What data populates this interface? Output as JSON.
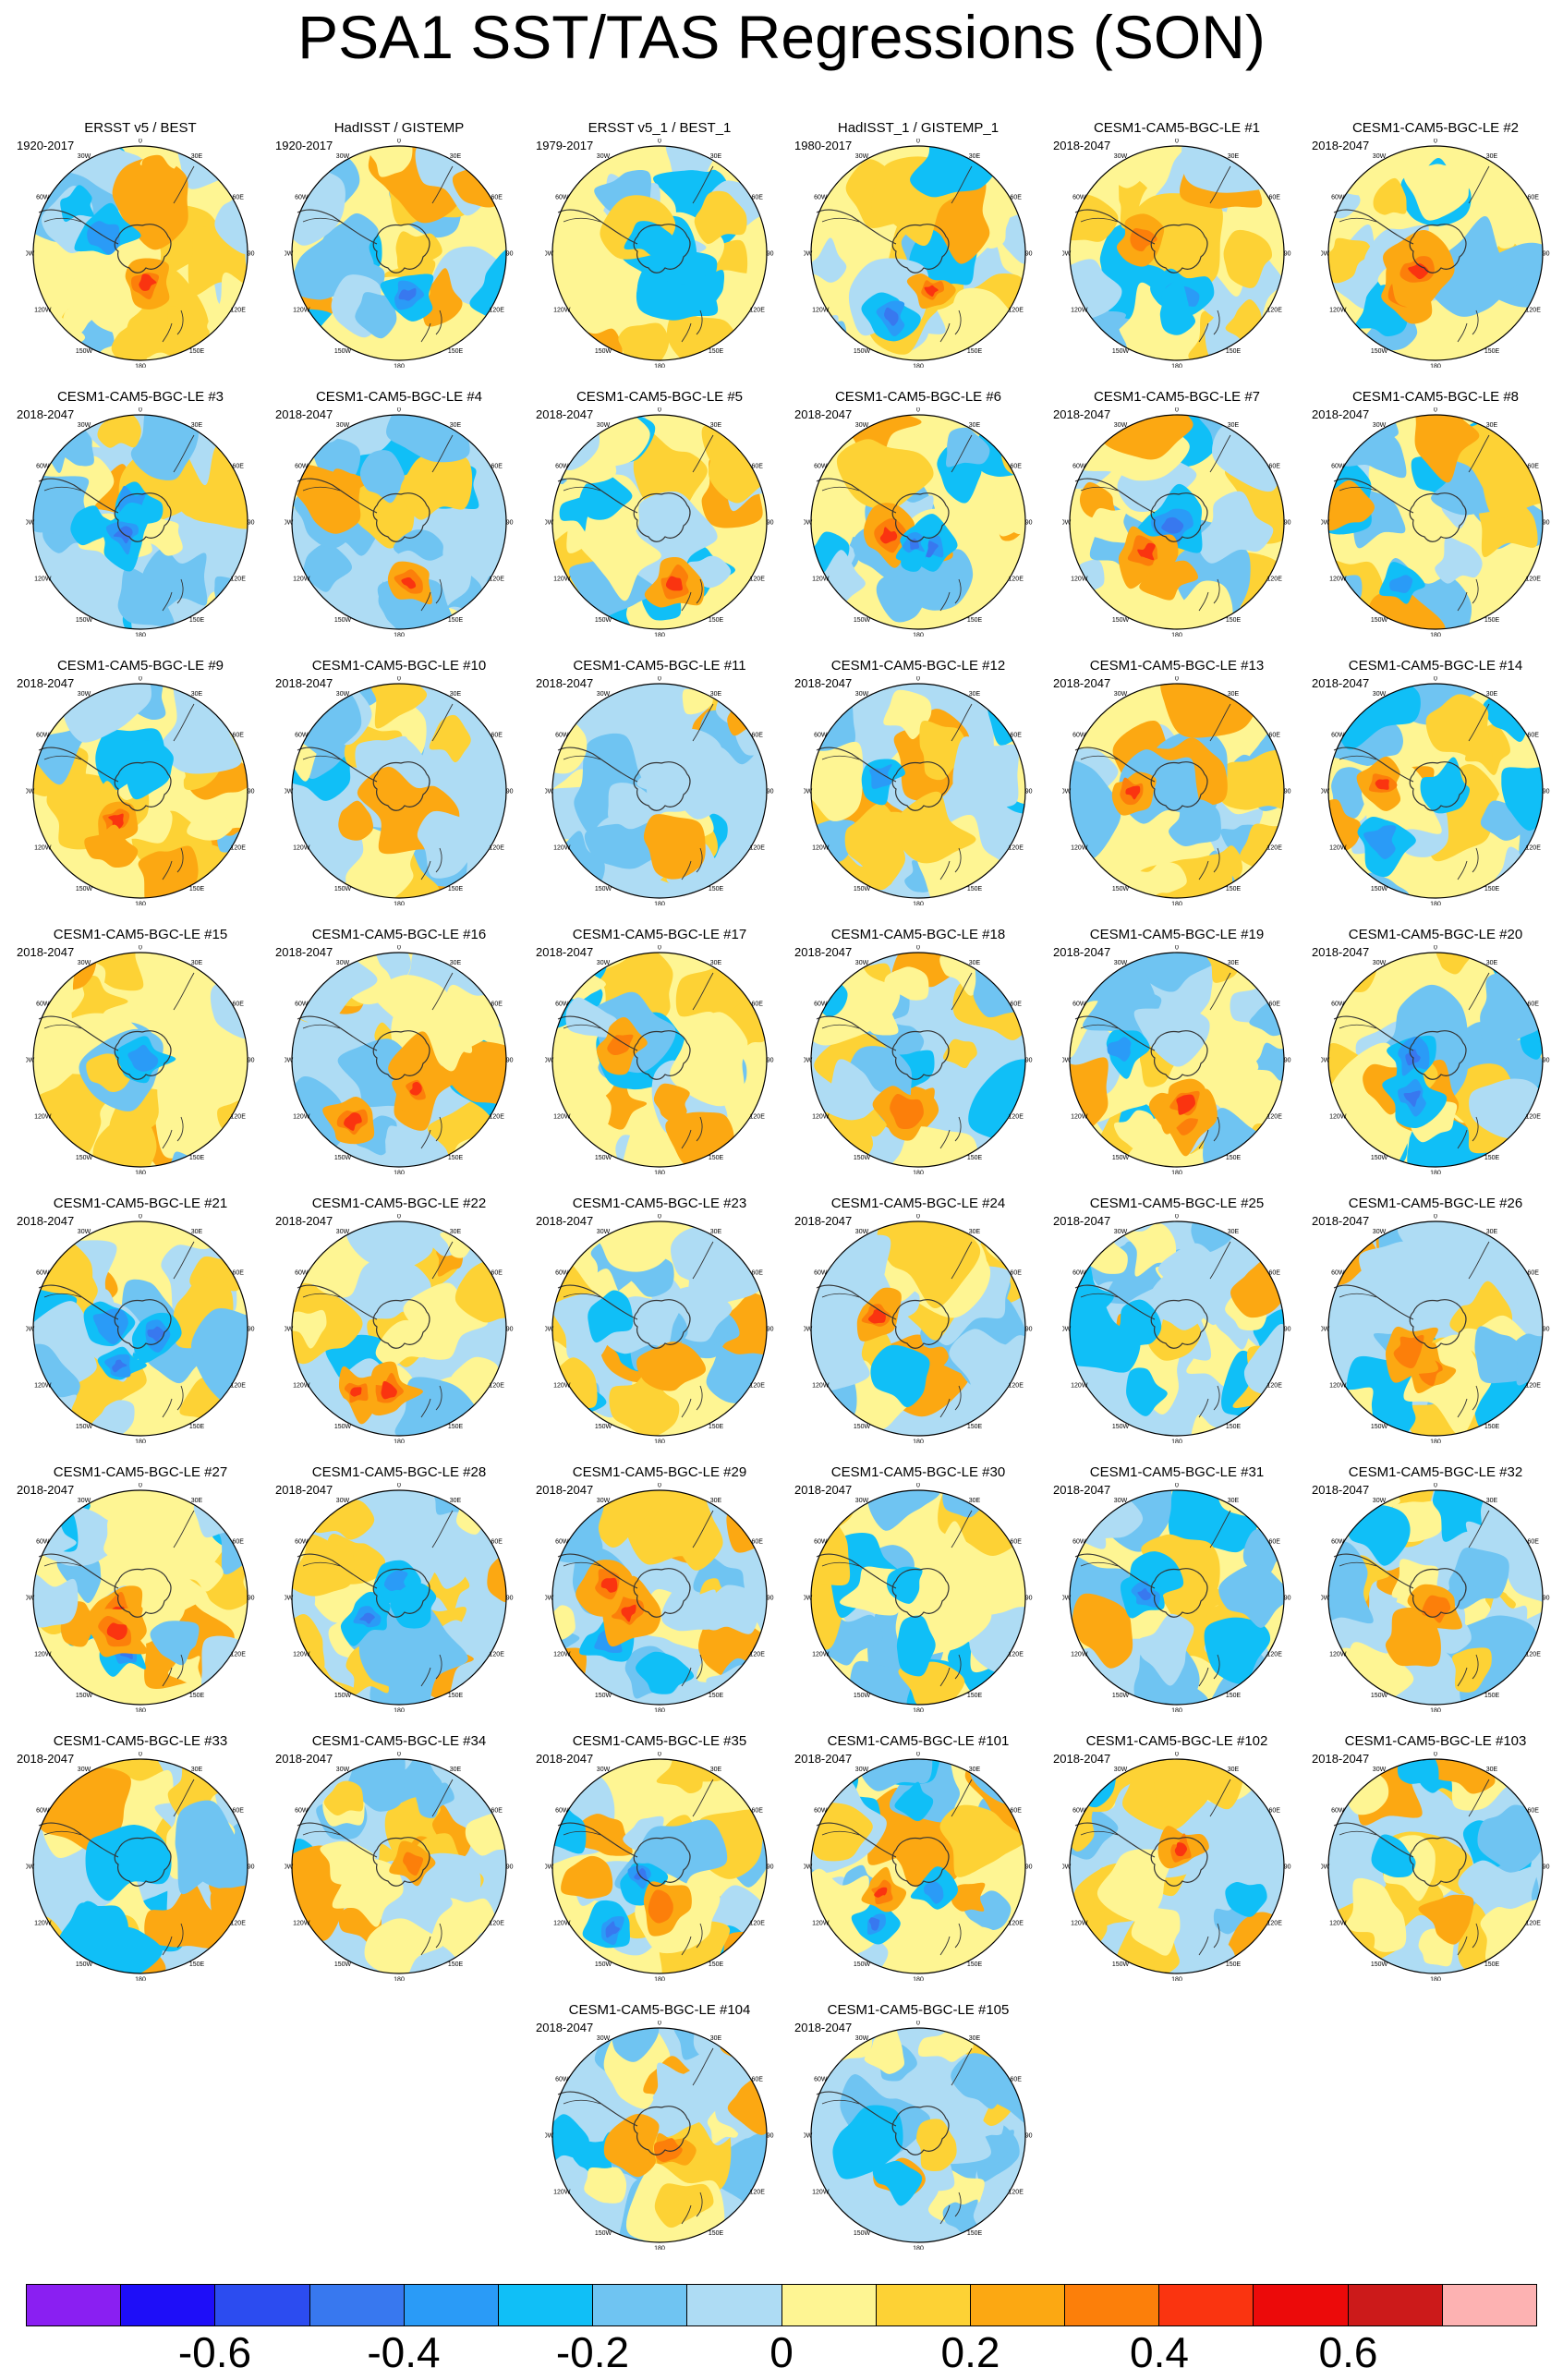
{
  "title": "PSA1 SST/TAS Regressions (SON)",
  "panels": [
    {
      "title": "ERSST v5 / BEST",
      "period": "1920-2017"
    },
    {
      "title": "HadISST / GISTEMP",
      "period": "1920-2017"
    },
    {
      "title": "ERSST v5_1 / BEST_1",
      "period": "1979-2017"
    },
    {
      "title": "HadISST_1 / GISTEMP_1",
      "period": "1980-2017"
    },
    {
      "title": "CESM1-CAM5-BGC-LE #1",
      "period": "2018-2047"
    },
    {
      "title": "CESM1-CAM5-BGC-LE #2",
      "period": "2018-2047"
    },
    {
      "title": "CESM1-CAM5-BGC-LE #3",
      "period": "2018-2047"
    },
    {
      "title": "CESM1-CAM5-BGC-LE #4",
      "period": "2018-2047"
    },
    {
      "title": "CESM1-CAM5-BGC-LE #5",
      "period": "2018-2047"
    },
    {
      "title": "CESM1-CAM5-BGC-LE #6",
      "period": "2018-2047"
    },
    {
      "title": "CESM1-CAM5-BGC-LE #7",
      "period": "2018-2047"
    },
    {
      "title": "CESM1-CAM5-BGC-LE #8",
      "period": "2018-2047"
    },
    {
      "title": "CESM1-CAM5-BGC-LE #9",
      "period": "2018-2047"
    },
    {
      "title": "CESM1-CAM5-BGC-LE #10",
      "period": "2018-2047"
    },
    {
      "title": "CESM1-CAM5-BGC-LE #11",
      "period": "2018-2047"
    },
    {
      "title": "CESM1-CAM5-BGC-LE #12",
      "period": "2018-2047"
    },
    {
      "title": "CESM1-CAM5-BGC-LE #13",
      "period": "2018-2047"
    },
    {
      "title": "CESM1-CAM5-BGC-LE #14",
      "period": "2018-2047"
    },
    {
      "title": "CESM1-CAM5-BGC-LE #15",
      "period": "2018-2047"
    },
    {
      "title": "CESM1-CAM5-BGC-LE #16",
      "period": "2018-2047"
    },
    {
      "title": "CESM1-CAM5-BGC-LE #17",
      "period": "2018-2047"
    },
    {
      "title": "CESM1-CAM5-BGC-LE #18",
      "period": "2018-2047"
    },
    {
      "title": "CESM1-CAM5-BGC-LE #19",
      "period": "2018-2047"
    },
    {
      "title": "CESM1-CAM5-BGC-LE #20",
      "period": "2018-2047"
    },
    {
      "title": "CESM1-CAM5-BGC-LE #21",
      "period": "2018-2047"
    },
    {
      "title": "CESM1-CAM5-BGC-LE #22",
      "period": "2018-2047"
    },
    {
      "title": "CESM1-CAM5-BGC-LE #23",
      "period": "2018-2047"
    },
    {
      "title": "CESM1-CAM5-BGC-LE #24",
      "period": "2018-2047"
    },
    {
      "title": "CESM1-CAM5-BGC-LE #25",
      "period": "2018-2047"
    },
    {
      "title": "CESM1-CAM5-BGC-LE #26",
      "period": "2018-2047"
    },
    {
      "title": "CESM1-CAM5-BGC-LE #27",
      "period": "2018-2047"
    },
    {
      "title": "CESM1-CAM5-BGC-LE #28",
      "period": "2018-2047"
    },
    {
      "title": "CESM1-CAM5-BGC-LE #29",
      "period": "2018-2047"
    },
    {
      "title": "CESM1-CAM5-BGC-LE #30",
      "period": "2018-2047"
    },
    {
      "title": "CESM1-CAM5-BGC-LE #31",
      "period": "2018-2047"
    },
    {
      "title": "CESM1-CAM5-BGC-LE #32",
      "period": "2018-2047"
    },
    {
      "title": "CESM1-CAM5-BGC-LE #33",
      "period": "2018-2047"
    },
    {
      "title": "CESM1-CAM5-BGC-LE #34",
      "period": "2018-2047"
    },
    {
      "title": "CESM1-CAM5-BGC-LE #35",
      "period": "2018-2047"
    },
    {
      "title": "CESM1-CAM5-BGC-LE #101",
      "period": "2018-2047"
    },
    {
      "title": "CESM1-CAM5-BGC-LE #102",
      "period": "2018-2047"
    },
    {
      "title": "CESM1-CAM5-BGC-LE #103",
      "period": "2018-2047"
    },
    {
      "title": "CESM1-CAM5-BGC-LE #104",
      "period": "2018-2047"
    },
    {
      "title": "CESM1-CAM5-BGC-LE #105",
      "period": "2018-2047"
    }
  ],
  "lon_labels": [
    "0",
    "30E",
    "60E",
    "90E",
    "120E",
    "150E",
    "180",
    "150W",
    "120W",
    "90W",
    "60W",
    "30W"
  ],
  "colorbar": {
    "colors": [
      "#8a1ff2",
      "#1e0ef8",
      "#2c4cf0",
      "#3878ef",
      "#2a9bf7",
      "#10bff7",
      "#6fc4f2",
      "#aedcf4",
      "#fef593",
      "#fdd235",
      "#fca812",
      "#fc7f0a",
      "#fa3410",
      "#ec0a0a",
      "#cc1a1a",
      "#fdb2b2"
    ],
    "labels": [
      "-0.6",
      "-0.4",
      "-0.2",
      "0",
      "0.2",
      "0.4",
      "0.6"
    ],
    "label_values": [
      -0.6,
      -0.4,
      -0.2,
      0,
      0.2,
      0.4,
      0.6
    ],
    "min": -0.8,
    "max": 0.8
  }
}
